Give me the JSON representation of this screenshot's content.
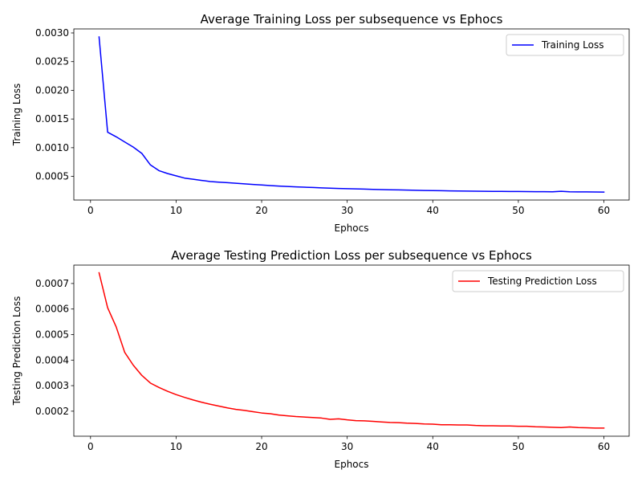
{
  "chart_data": [
    {
      "type": "line",
      "title": "Average Training Loss per subsequence vs Ephocs",
      "xlabel": "Ephocs",
      "ylabel": "Training Loss",
      "xlim": [
        -1.95,
        62.95
      ],
      "ylim": [
        8.8e-05,
        0.00307
      ],
      "xticks": [
        0,
        10,
        20,
        30,
        40,
        50,
        60
      ],
      "xtick_labels": [
        "0",
        "10",
        "20",
        "30",
        "40",
        "50",
        "60"
      ],
      "yticks": [
        0.0005,
        0.001,
        0.0015,
        0.002,
        0.0025,
        0.003
      ],
      "ytick_labels": [
        "0.0005",
        "0.0010",
        "0.0015",
        "0.0020",
        "0.0025",
        "0.0030"
      ],
      "grid": false,
      "legend_position": "top-right",
      "series": [
        {
          "name": "Training Loss",
          "color": "#0000ff",
          "x": [
            1,
            2,
            3,
            4,
            5,
            6,
            7,
            8,
            9,
            10,
            11,
            12,
            13,
            14,
            15,
            16,
            17,
            18,
            19,
            20,
            21,
            22,
            23,
            24,
            25,
            26,
            27,
            28,
            29,
            30,
            31,
            32,
            33,
            34,
            35,
            36,
            37,
            38,
            39,
            40,
            41,
            42,
            43,
            44,
            45,
            46,
            47,
            48,
            49,
            50,
            51,
            52,
            53,
            54,
            55,
            56,
            57,
            58,
            59,
            60
          ],
          "y": [
            0.00293,
            0.00127,
            0.00119,
            0.0011,
            0.00101,
            0.0009,
            0.0007,
            0.0006,
            0.00055,
            0.00051,
            0.00047,
            0.00045,
            0.00043,
            0.00041,
            0.0004,
            0.00039,
            0.00038,
            0.00037,
            0.00036,
            0.00035,
            0.00034,
            0.000332,
            0.000325,
            0.000318,
            0.000312,
            0.000306,
            0.0003,
            0.000295,
            0.00029,
            0.000286,
            0.000282,
            0.000278,
            0.000274,
            0.00027,
            0.000267,
            0.000264,
            0.000261,
            0.000258,
            0.000255,
            0.000252,
            0.00025,
            0.000248,
            0.000246,
            0.000244,
            0.000242,
            0.00024,
            0.000239,
            0.000238,
            0.000237,
            0.000236,
            0.000235,
            0.000234,
            0.000233,
            0.000232,
            0.00024,
            0.000231,
            0.00023,
            0.000229,
            0.000228,
            0.000227
          ]
        }
      ]
    },
    {
      "type": "line",
      "title": "Average Testing Prediction Loss per subsequence vs Ephocs",
      "xlabel": "Ephocs",
      "ylabel": "Testing Prediction Loss",
      "xlim": [
        -1.95,
        62.95
      ],
      "ylim": [
        0.000102,
        0.000772
      ],
      "xticks": [
        0,
        10,
        20,
        30,
        40,
        50,
        60
      ],
      "xtick_labels": [
        "0",
        "10",
        "20",
        "30",
        "40",
        "50",
        "60"
      ],
      "yticks": [
        0.0002,
        0.0003,
        0.0004,
        0.0005,
        0.0006,
        0.0007
      ],
      "ytick_labels": [
        "0.0002",
        "0.0003",
        "0.0004",
        "0.0005",
        "0.0006",
        "0.0007"
      ],
      "grid": false,
      "legend_position": "top-right",
      "series": [
        {
          "name": "Testing Prediction Loss",
          "color": "#ff0000",
          "x": [
            1,
            2,
            3,
            4,
            5,
            6,
            7,
            8,
            9,
            10,
            11,
            12,
            13,
            14,
            15,
            16,
            17,
            18,
            19,
            20,
            21,
            22,
            23,
            24,
            25,
            26,
            27,
            28,
            29,
            30,
            31,
            32,
            33,
            34,
            35,
            36,
            37,
            38,
            39,
            40,
            41,
            42,
            43,
            44,
            45,
            46,
            47,
            48,
            49,
            50,
            51,
            52,
            53,
            54,
            55,
            56,
            57,
            58,
            59,
            60
          ],
          "y": [
            0.000742,
            0.000605,
            0.00053,
            0.00043,
            0.00038,
            0.00034,
            0.00031,
            0.000293,
            0.000278,
            0.000265,
            0.000254,
            0.000244,
            0.000235,
            0.000227,
            0.00022,
            0.000213,
            0.000207,
            0.000203,
            0.000198,
            0.000193,
            0.00019,
            0.000185,
            0.000182,
            0.000179,
            0.000177,
            0.000175,
            0.000173,
            0.000168,
            0.00017,
            0.000166,
            0.000163,
            0.000162,
            0.00016,
            0.000158,
            0.000156,
            0.000155,
            0.000153,
            0.000152,
            0.00015,
            0.000149,
            0.000147,
            0.000147,
            0.000146,
            0.000146,
            0.000144,
            0.000143,
            0.000143,
            0.000142,
            0.000142,
            0.000141,
            0.000141,
            0.000139,
            0.000138,
            0.000137,
            0.000136,
            0.000138,
            0.000136,
            0.000135,
            0.000134,
            0.000134
          ]
        }
      ]
    }
  ]
}
